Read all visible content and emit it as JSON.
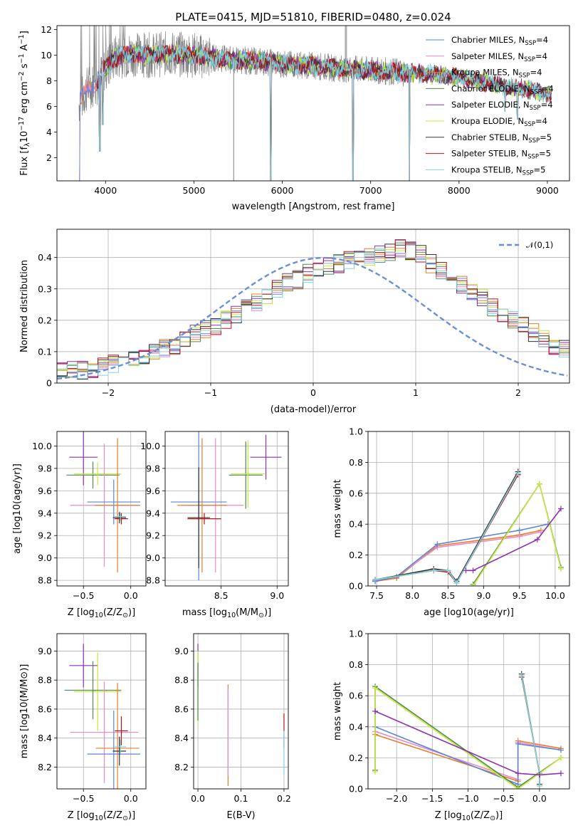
{
  "title": "PLATE=0415, MJD=51810, FIBERID=0480, z=0.024",
  "colors": {
    "Chabrier MILES": "#5b86d6",
    "Salpeter MILES": "#e88ac6",
    "Kroupa MILES": "#e87b2a",
    "Chabrier ELODIE": "#4f8a4f",
    "Salpeter ELODIE": "#8e2fb0",
    "Kroupa ELODIE": "#c7ea3a",
    "Chabrier STELIB": "#333333",
    "Salpeter STELIB": "#b8141e",
    "Kroupa STELIB": "#7fd6dc",
    "data": "#808080",
    "normal": "#6a8fd6"
  },
  "chart_data": [
    {
      "type": "line",
      "title": "PLATE=0415, MJD=51810, FIBERID=0480, z=0.024",
      "xlabel": "wavelength [Angstrom, rest frame]",
      "ylabel": "Flux [f$_\\lambda$10$^{-17}$ erg cm$^{-2}$ s$^{-1}$ A$^{-1}$]",
      "xlim": [
        3450,
        9250
      ],
      "ylim": [
        0.2,
        12.3
      ],
      "xticks": [
        4000,
        5000,
        6000,
        7000,
        8000,
        9000
      ],
      "yticks": [
        2,
        4,
        6,
        8,
        10,
        12
      ],
      "legend_position": "upper-right",
      "legend": [
        {
          "name": "Chabrier MILES, N",
          "sub": "SSP",
          "suffix": "=4"
        },
        {
          "name": "Salpeter MILES, N",
          "sub": "SSP",
          "suffix": "=4"
        },
        {
          "name": "Kroupa MILES, N",
          "sub": "SSP",
          "suffix": "=4"
        },
        {
          "name": "Chabrier ELODIE, N",
          "sub": "SSP",
          "suffix": "=4"
        },
        {
          "name": "Salpeter ELODIE, N",
          "sub": "SSP",
          "suffix": "=4"
        },
        {
          "name": "Kroupa ELODIE, N",
          "sub": "SSP",
          "suffix": "=4"
        },
        {
          "name": "Chabrier STELIB, N",
          "sub": "SSP",
          "suffix": "=5"
        },
        {
          "name": "Salpeter STELIB, N",
          "sub": "SSP",
          "suffix": "=5"
        },
        {
          "name": "Kroupa STELIB, N",
          "sub": "SSP",
          "suffix": "=5"
        }
      ],
      "series_model_wavelengths": [
        3700,
        9050
      ],
      "continuum": [
        [
          3700,
          6.2
        ],
        [
          3800,
          7.5
        ],
        [
          3900,
          7.8
        ],
        [
          4000,
          9.0
        ],
        [
          4100,
          9.8
        ],
        [
          4200,
          10.0
        ],
        [
          4300,
          10.1
        ],
        [
          4500,
          10.0
        ],
        [
          4700,
          10.1
        ],
        [
          5000,
          10.0
        ],
        [
          5200,
          9.8
        ],
        [
          5500,
          9.6
        ],
        [
          5800,
          9.5
        ],
        [
          6000,
          9.3
        ],
        [
          6300,
          9.2
        ],
        [
          6600,
          9.0
        ],
        [
          7000,
          8.8
        ],
        [
          7300,
          8.7
        ],
        [
          7700,
          8.5
        ],
        [
          8000,
          8.3
        ],
        [
          8200,
          8.0
        ],
        [
          8500,
          7.6
        ],
        [
          8800,
          7.3
        ],
        [
          9050,
          6.9
        ]
      ],
      "absorption_dips": [
        {
          "x": 3705,
          "y": 0.2
        },
        {
          "x": 3935,
          "y": 2.5
        },
        {
          "x": 3968,
          "y": 4.6
        },
        {
          "x": 5870,
          "y": 0.2
        },
        {
          "x": 6800,
          "y": 0.2
        },
        {
          "x": 7440,
          "y": 0.2
        },
        {
          "x": 8520,
          "y": 5.6
        },
        {
          "x": 8660,
          "y": 5.0
        }
      ]
    },
    {
      "type": "step",
      "xlabel": "(data-model)/error",
      "ylabel": "Normed distribution",
      "xlim": [
        -2.5,
        2.5
      ],
      "ylim": [
        0,
        0.49
      ],
      "xticks": [
        -2,
        -1,
        0,
        1,
        2
      ],
      "xtick_labels": [
        "−2",
        "−1",
        "0",
        "1",
        "2"
      ],
      "yticks": [
        0.0,
        0.1,
        0.2,
        0.3,
        0.4
      ],
      "bin_width": 0.1,
      "bin_start": -2.5,
      "histogram": [
        0.035,
        0.04,
        0.04,
        0.045,
        0.05,
        0.06,
        0.065,
        0.075,
        0.09,
        0.1,
        0.11,
        0.12,
        0.14,
        0.155,
        0.17,
        0.18,
        0.2,
        0.22,
        0.24,
        0.26,
        0.28,
        0.3,
        0.32,
        0.33,
        0.35,
        0.36,
        0.37,
        0.38,
        0.39,
        0.4,
        0.4,
        0.41,
        0.42,
        0.43,
        0.42,
        0.41,
        0.38,
        0.36,
        0.33,
        0.31,
        0.29,
        0.27,
        0.24,
        0.22,
        0.2,
        0.18,
        0.16,
        0.14,
        0.12,
        0.11,
        0.095,
        0.085,
        0.075,
        0.065,
        0.055,
        0.05,
        0.045,
        0.04,
        0.035,
        0.03
      ],
      "gaussian": {
        "name": "𝒩(0,1)",
        "mean": 0.1,
        "sigma": 1.0
      },
      "legend_position": "upper-right"
    },
    {
      "type": "errorbar",
      "xlabel_main": "Z [log",
      "xlabel_sub": "10",
      "xlabel_tail": "(Z/Z",
      "xlabel_sun": "⊙",
      "xlabel_end": ")]",
      "ylabel": "age  [log10(age/yr)]",
      "xlim": [
        -0.78,
        0.16
      ],
      "ylim": [
        8.75,
        10.13
      ],
      "xticks": [
        -0.5,
        0.0
      ],
      "xtick_labels": [
        "−0.5",
        "0.0"
      ],
      "yticks": [
        8.8,
        9.0,
        9.2,
        9.4,
        9.6,
        9.8,
        10.0
      ],
      "ytick_labels": [
        "8.8",
        "9.0",
        "9.2",
        "9.4",
        "9.6",
        "9.8",
        "10.0"
      ],
      "points": [
        {
          "model": "Salpeter ELODIE",
          "x": -0.5,
          "xerr": 0.15,
          "y": 9.9,
          "yerr": 0.25
        },
        {
          "model": "Chabrier ELODIE",
          "x": -0.4,
          "xerr": 0.28,
          "y": 9.74,
          "yerr": 0.12
        },
        {
          "model": "Kroupa ELODIE",
          "x": -0.35,
          "xerr": 0.25,
          "y": 9.75,
          "yerr": 0.1
        },
        {
          "model": "Salpeter MILES",
          "x": -0.28,
          "xerr": 0.36,
          "y": 9.47,
          "yerr": 0.55
        },
        {
          "model": "Chabrier MILES",
          "x": -0.18,
          "xerr": 0.28,
          "y": 9.5,
          "yerr": 0.2
        },
        {
          "model": "Kroupa MILES",
          "x": -0.14,
          "xerr": 0.24,
          "y": 9.47,
          "yerr": 0.6
        },
        {
          "model": "Chabrier STELIB",
          "x": -0.12,
          "xerr": 0.07,
          "y": 9.36,
          "yerr": 0.05
        },
        {
          "model": "Salpeter STELIB",
          "x": -0.1,
          "xerr": 0.07,
          "y": 9.35,
          "yerr": 0.05
        },
        {
          "model": "Kroupa STELIB",
          "x": -0.11,
          "xerr": 0.06,
          "y": 9.37,
          "yerr": 0.04
        }
      ]
    },
    {
      "type": "errorbar",
      "xlabel_main": "mass [log",
      "xlabel_sub": "10",
      "xlabel_tail": "(M/M",
      "xlabel_sun": "⊙",
      "xlabel_end": ")]",
      "ylabel": "",
      "xlim": [
        8.0,
        9.1
      ],
      "ylim": [
        8.75,
        10.13
      ],
      "xticks": [
        8.5,
        9.0
      ],
      "xtick_labels": [
        "8.5",
        "9.0"
      ],
      "yticks": [
        8.8,
        9.0,
        9.2,
        9.4,
        9.6,
        9.8,
        10.0
      ],
      "ytick_labels": [
        "8.8",
        "9.0",
        "9.2",
        "9.4",
        "9.6",
        "9.8",
        "10.0"
      ],
      "points": [
        {
          "model": "Chabrier MILES",
          "x": 8.3,
          "xerr": 0.25,
          "y": 9.5,
          "yerr": 0.7
        },
        {
          "model": "Salpeter MILES",
          "x": 8.45,
          "xerr": 0.25,
          "y": 9.47,
          "yerr": 0.6
        },
        {
          "model": "Kroupa MILES",
          "x": 8.33,
          "xerr": 0.22,
          "y": 9.47,
          "yerr": 0.6
        },
        {
          "model": "Chabrier STELIB",
          "x": 8.3,
          "xerr": 0.1,
          "y": 9.36,
          "yerr": 0.45
        },
        {
          "model": "Salpeter STELIB",
          "x": 8.35,
          "xerr": 0.15,
          "y": 9.35,
          "yerr": 0.05
        },
        {
          "model": "Chabrier ELODIE",
          "x": 8.72,
          "xerr": 0.15,
          "y": 9.74,
          "yerr": 0.3
        },
        {
          "model": "Kroupa ELODIE",
          "x": 8.74,
          "xerr": 0.15,
          "y": 9.75,
          "yerr": 0.3
        },
        {
          "model": "Salpeter ELODIE",
          "x": 8.9,
          "xerr": 0.14,
          "y": 9.9,
          "yerr": 0.2
        }
      ]
    },
    {
      "type": "line",
      "xlabel": "age  [log10(age/yr)]",
      "ylabel": "mass weight",
      "xlim": [
        7.38,
        10.2
      ],
      "ylim": [
        0.0,
        1.0
      ],
      "xticks": [
        7.5,
        8.0,
        8.5,
        9.0,
        9.5,
        10.0
      ],
      "xtick_labels": [
        "7.5",
        "8.0",
        "8.5",
        "9.0",
        "9.5",
        "10.0"
      ],
      "yticks": [
        0.0,
        0.2,
        0.4,
        0.6,
        0.8,
        1.0
      ],
      "ytick_labels": [
        "0.0",
        "0.2",
        "0.4",
        "0.6",
        "0.8",
        "1.0"
      ],
      "series": [
        {
          "model": "Kroupa MILES",
          "x": [
            7.48,
            7.78,
            8.35,
            9.5,
            9.8
          ],
          "y": [
            0.03,
            0.05,
            0.26,
            0.33,
            0.36
          ]
        },
        {
          "model": "Salpeter MILES",
          "x": [
            7.48,
            7.78,
            8.35,
            9.5,
            9.8
          ],
          "y": [
            0.035,
            0.06,
            0.25,
            0.32,
            0.35
          ]
        },
        {
          "model": "Chabrier MILES",
          "x": [
            7.48,
            7.78,
            8.35,
            9.5,
            9.9
          ],
          "y": [
            0.03,
            0.06,
            0.27,
            0.36,
            0.4
          ]
        },
        {
          "model": "Chabrier STELIB",
          "x": [
            7.48,
            8.3,
            8.5,
            8.62,
            9.48
          ],
          "y": [
            0.04,
            0.11,
            0.1,
            0.03,
            0.74
          ]
        },
        {
          "model": "Salpeter STELIB",
          "x": [
            7.48,
            8.3,
            8.5,
            8.62,
            9.48
          ],
          "y": [
            0.04,
            0.1,
            0.09,
            0.02,
            0.72
          ]
        },
        {
          "model": "Kroupa STELIB",
          "x": [
            7.48,
            8.3,
            8.5,
            8.62,
            9.48
          ],
          "y": [
            0.04,
            0.1,
            0.1,
            0.02,
            0.73
          ]
        },
        {
          "model": "Chabrier ELODIE",
          "x": [
            8.85,
            9.78,
            10.08
          ],
          "y": [
            0.01,
            0.66,
            0.12
          ]
        },
        {
          "model": "Kroupa ELODIE",
          "x": [
            8.85,
            9.78,
            10.08
          ],
          "y": [
            0.0,
            0.66,
            0.11
          ]
        },
        {
          "model": "Salpeter ELODIE",
          "x": [
            8.75,
            8.85,
            9.75,
            10.08
          ],
          "y": [
            0.1,
            0.1,
            0.3,
            0.5
          ]
        }
      ]
    },
    {
      "type": "errorbar",
      "xlabel_main": "Z [log",
      "xlabel_sub": "10",
      "xlabel_tail": "(Z/Z",
      "xlabel_sun": "⊙",
      "xlabel_end": ")]",
      "ylabel": "mass [log10(M/M⊙)]",
      "xlim": [
        -0.78,
        0.16
      ],
      "ylim": [
        8.05,
        9.12
      ],
      "xticks": [
        -0.5,
        0.0
      ],
      "xtick_labels": [
        "−0.5",
        "0.0"
      ],
      "yticks": [
        8.2,
        8.4,
        8.6,
        8.8,
        9.0
      ],
      "ytick_labels": [
        "8.2",
        "8.4",
        "8.6",
        "8.8",
        "9.0"
      ],
      "points": [
        {
          "model": "Salpeter ELODIE",
          "x": -0.5,
          "xerr": 0.15,
          "y": 8.9,
          "yerr": 0.15
        },
        {
          "model": "Kroupa ELODIE",
          "x": -0.35,
          "xerr": 0.25,
          "y": 8.72,
          "yerr": 0.27
        },
        {
          "model": "Chabrier ELODIE",
          "x": -0.4,
          "xerr": 0.3,
          "y": 8.73,
          "yerr": 0.2
        },
        {
          "model": "Salpeter MILES",
          "x": -0.28,
          "xerr": 0.36,
          "y": 8.44,
          "yerr": 0.35
        },
        {
          "model": "Kroupa MILES",
          "x": -0.14,
          "xerr": 0.23,
          "y": 8.33,
          "yerr": 0.45
        },
        {
          "model": "Chabrier MILES",
          "x": -0.18,
          "xerr": 0.28,
          "y": 8.29,
          "yerr": 0.3
        },
        {
          "model": "Chabrier STELIB",
          "x": -0.12,
          "xerr": 0.07,
          "y": 8.31,
          "yerr": 0.1
        },
        {
          "model": "Salpeter STELIB",
          "x": -0.1,
          "xerr": 0.07,
          "y": 8.45,
          "yerr": 0.1
        },
        {
          "model": "Kroupa STELIB",
          "x": -0.11,
          "xerr": 0.06,
          "y": 8.34,
          "yerr": 0.05
        }
      ]
    },
    {
      "type": "errorbar",
      "xlabel": "E(B-V)",
      "ylabel": "",
      "xlim": [
        -0.01,
        0.21
      ],
      "ylim": [
        8.05,
        9.12
      ],
      "xticks": [
        0.0,
        0.1,
        0.2
      ],
      "xtick_labels": [
        "0.0",
        "0.1",
        "0.2"
      ],
      "yticks": [
        8.2,
        8.4,
        8.6,
        8.8,
        9.0
      ],
      "ytick_labels": [
        "8.2",
        "8.4",
        "8.6",
        "8.8",
        "9.0"
      ],
      "points": [
        {
          "model": "Salpeter ELODIE",
          "x": 0.0,
          "xerr": 0,
          "y": 8.9,
          "yerr": 0.15
        },
        {
          "model": "Kroupa ELODIE",
          "x": 0.0,
          "xerr": 0,
          "y": 8.75,
          "yerr": 0.25
        },
        {
          "model": "Chabrier ELODIE",
          "x": 0.0,
          "xerr": 0,
          "y": 8.72,
          "yerr": 0.2
        },
        {
          "model": "Kroupa MILES",
          "x": 0.07,
          "xerr": 0,
          "y": 8.42,
          "yerr": 0.35
        },
        {
          "model": "Salpeter MILES",
          "x": 0.07,
          "xerr": 0,
          "y": 8.44,
          "yerr": 0.3
        },
        {
          "model": "Salpeter STELIB",
          "x": 0.2,
          "xerr": 0,
          "y": 8.45,
          "yerr": 0.12
        },
        {
          "model": "Kroupa STELIB",
          "x": 0.2,
          "xerr": 0,
          "y": 8.3,
          "yerr": 0.15
        }
      ]
    },
    {
      "type": "line",
      "xlabel_main": "Z [log",
      "xlabel_sub": "10",
      "xlabel_tail": "(Z/Z",
      "xlabel_sun": "⊙",
      "xlabel_end": ")]",
      "ylabel": "mass weight",
      "xlim": [
        -2.4,
        0.42
      ],
      "ylim": [
        0.0,
        1.0
      ],
      "xticks": [
        -2.0,
        -1.5,
        -1.0,
        -0.5,
        0.0
      ],
      "xtick_labels": [
        "−2.0",
        "−1.5",
        "−1.0",
        "−0.5",
        "0.0"
      ],
      "yticks": [
        0.0,
        0.2,
        0.4,
        0.6,
        0.8,
        1.0
      ],
      "ytick_labels": [
        "0.0",
        "0.2",
        "0.4",
        "0.6",
        "0.8",
        "1.0"
      ],
      "series": [
        {
          "model": "Kroupa MILES",
          "x": [
            -2.3,
            -0.3,
            -0.3,
            0.3
          ],
          "y": [
            0.35,
            0.05,
            0.31,
            0.26
          ]
        },
        {
          "model": "Salpeter MILES",
          "x": [
            -2.3,
            -0.3,
            -0.3,
            0.3
          ],
          "y": [
            0.37,
            0.06,
            0.3,
            0.25
          ]
        },
        {
          "model": "Chabrier MILES",
          "x": [
            -2.3,
            -0.3,
            -0.3,
            0.3
          ],
          "y": [
            0.4,
            0.03,
            0.29,
            0.25
          ]
        },
        {
          "model": "Chabrier STELIB",
          "x": [
            -0.25,
            0.0,
            0.0
          ],
          "y": [
            0.74,
            0.1,
            0.03
          ]
        },
        {
          "model": "Salpeter STELIB",
          "x": [
            -0.25,
            0.0,
            0.0
          ],
          "y": [
            0.72,
            0.1,
            0.02
          ]
        },
        {
          "model": "Kroupa STELIB",
          "x": [
            -0.25,
            0.0,
            0.0
          ],
          "y": [
            0.73,
            0.1,
            0.02
          ]
        },
        {
          "model": "Chabrier ELODIE",
          "x": [
            -2.3,
            -2.3,
            -0.3,
            0.3
          ],
          "y": [
            0.12,
            0.66,
            0.01,
            0.2
          ]
        },
        {
          "model": "Kroupa ELODIE",
          "x": [
            -2.3,
            -2.3,
            -0.3,
            0.3
          ],
          "y": [
            0.11,
            0.65,
            0.0,
            0.2
          ]
        },
        {
          "model": "Salpeter ELODIE",
          "x": [
            -2.3,
            -0.3,
            0.0,
            0.3
          ],
          "y": [
            0.5,
            0.1,
            0.09,
            0.1
          ]
        }
      ]
    }
  ]
}
